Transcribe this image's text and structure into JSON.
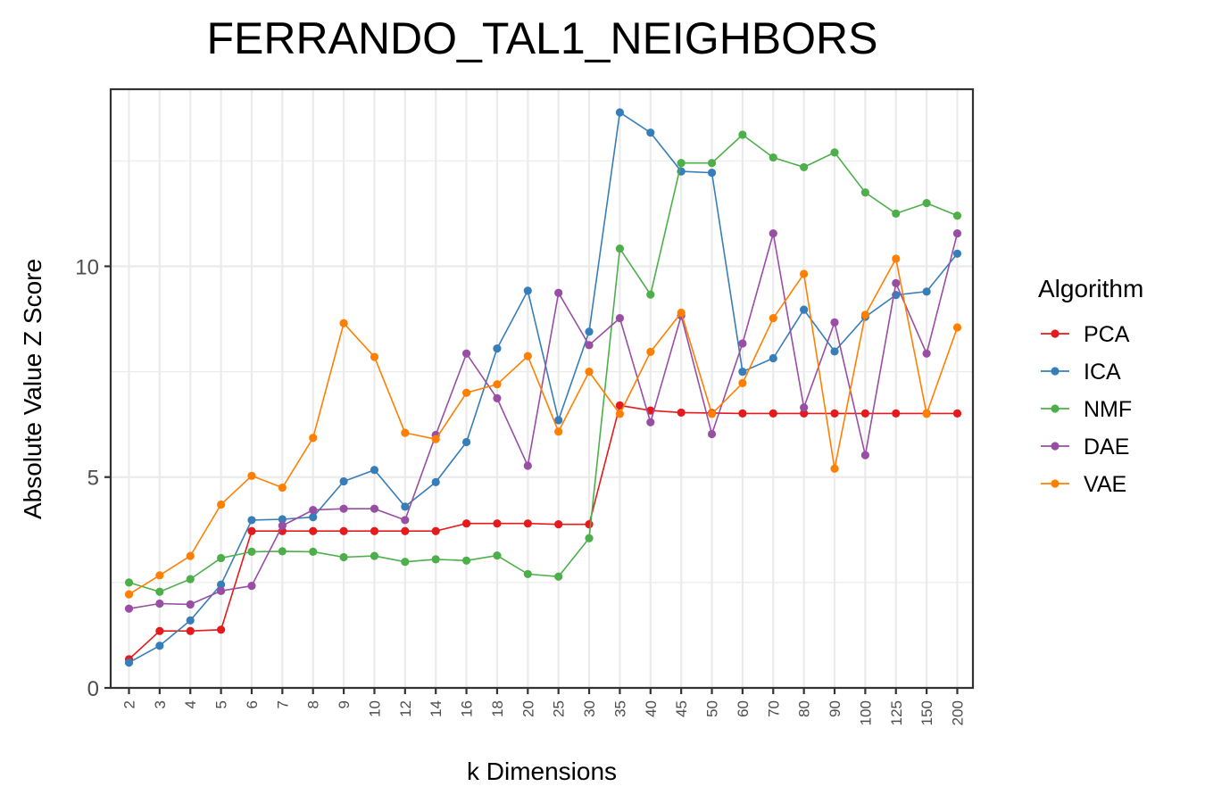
{
  "chart_data": {
    "type": "line",
    "title": "FERRANDO_TAL1_NEIGHBORS",
    "xlabel": "k Dimensions",
    "ylabel": "Absolute Value Z Score",
    "categories": [
      "2",
      "3",
      "4",
      "5",
      "6",
      "7",
      "8",
      "9",
      "10",
      "12",
      "14",
      "16",
      "18",
      "20",
      "25",
      "30",
      "35",
      "40",
      "45",
      "50",
      "60",
      "70",
      "80",
      "90",
      "100",
      "125",
      "150",
      "200"
    ],
    "ylim": [
      0,
      14.2
    ],
    "yticks": [
      0,
      5,
      10
    ],
    "grid": true,
    "legend": {
      "title": "Algorithm",
      "position": "right"
    },
    "series": [
      {
        "name": "PCA",
        "color": "#e41a1c",
        "values": [
          0.68,
          1.35,
          1.35,
          1.38,
          3.72,
          3.72,
          3.72,
          3.72,
          3.72,
          3.72,
          3.72,
          3.9,
          3.9,
          3.9,
          3.88,
          3.88,
          6.7,
          6.58,
          6.53,
          6.52,
          6.51,
          6.51,
          6.51,
          6.51,
          6.51,
          6.51,
          6.51,
          6.51
        ]
      },
      {
        "name": "ICA",
        "color": "#377eb8",
        "values": [
          0.6,
          1.0,
          1.6,
          2.45,
          3.98,
          4.0,
          4.05,
          4.9,
          5.17,
          4.3,
          4.88,
          5.83,
          8.05,
          9.42,
          6.35,
          8.45,
          13.65,
          13.17,
          12.25,
          12.22,
          7.5,
          7.82,
          8.97,
          7.98,
          8.8,
          9.32,
          9.4,
          10.3
        ]
      },
      {
        "name": "NMF",
        "color": "#4daf4a",
        "values": [
          2.5,
          2.28,
          2.58,
          3.08,
          3.23,
          3.24,
          3.23,
          3.1,
          3.13,
          2.99,
          3.05,
          3.02,
          3.14,
          2.7,
          2.64,
          3.55,
          10.42,
          9.33,
          12.45,
          12.45,
          13.12,
          12.58,
          12.35,
          12.7,
          11.75,
          11.25,
          11.5,
          11.2
        ]
      },
      {
        "name": "DAE",
        "color": "#984ea3",
        "values": [
          1.88,
          2.0,
          1.98,
          2.3,
          2.42,
          3.85,
          4.22,
          4.25,
          4.25,
          3.98,
          6.0,
          7.93,
          6.87,
          5.27,
          9.37,
          8.13,
          8.77,
          6.3,
          8.83,
          6.02,
          8.17,
          10.78,
          6.65,
          8.67,
          5.52,
          9.6,
          7.93,
          10.78
        ]
      },
      {
        "name": "VAE",
        "color": "#ff7f00",
        "values": [
          2.22,
          2.67,
          3.13,
          4.35,
          5.03,
          4.75,
          5.93,
          8.65,
          7.85,
          6.05,
          5.9,
          7.0,
          7.2,
          7.87,
          6.08,
          7.5,
          6.5,
          7.97,
          8.9,
          6.5,
          7.23,
          8.77,
          9.82,
          5.2,
          8.85,
          10.18,
          6.5,
          8.55
        ]
      }
    ]
  }
}
